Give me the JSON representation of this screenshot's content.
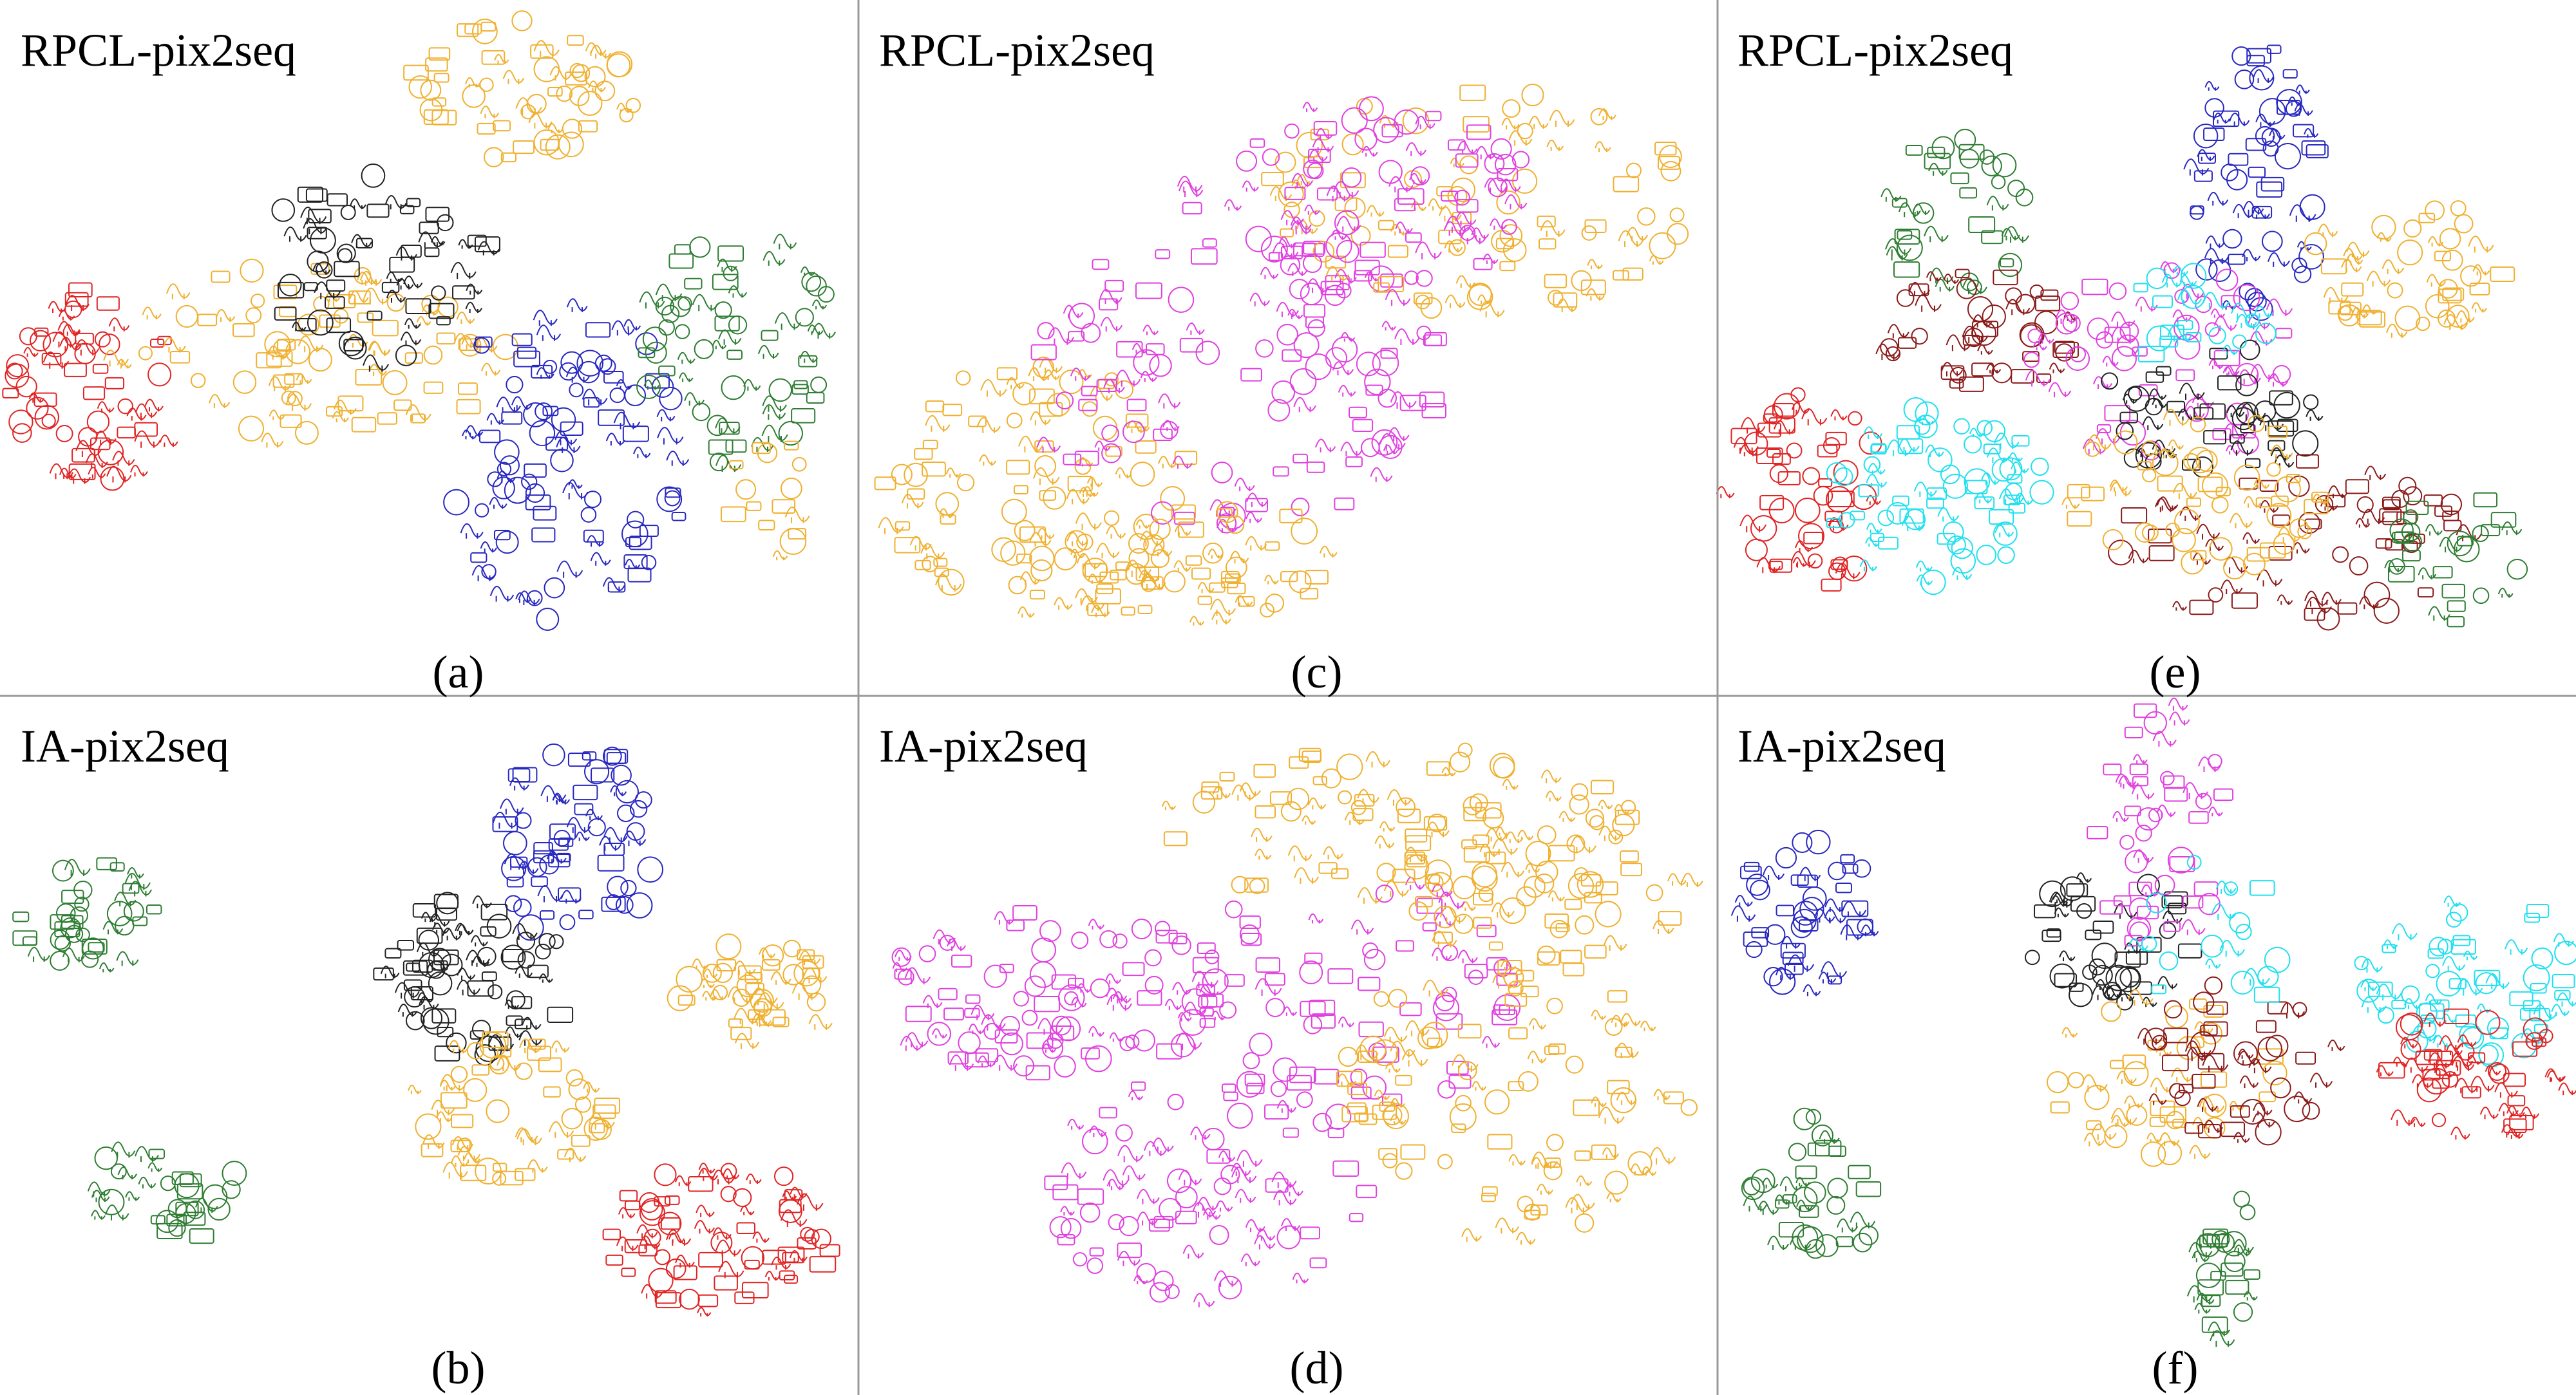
{
  "panels": [
    {
      "title": "RPCL-pix2seq",
      "label": "(a)"
    },
    {
      "title": "RPCL-pix2seq",
      "label": "(c)"
    },
    {
      "title": "RPCL-pix2seq",
      "label": "(e)"
    },
    {
      "title": "IA-pix2seq",
      "label": "(b)"
    },
    {
      "title": "IA-pix2seq",
      "label": "(d)"
    },
    {
      "title": "IA-pix2seq",
      "label": "(f)"
    }
  ]
}
